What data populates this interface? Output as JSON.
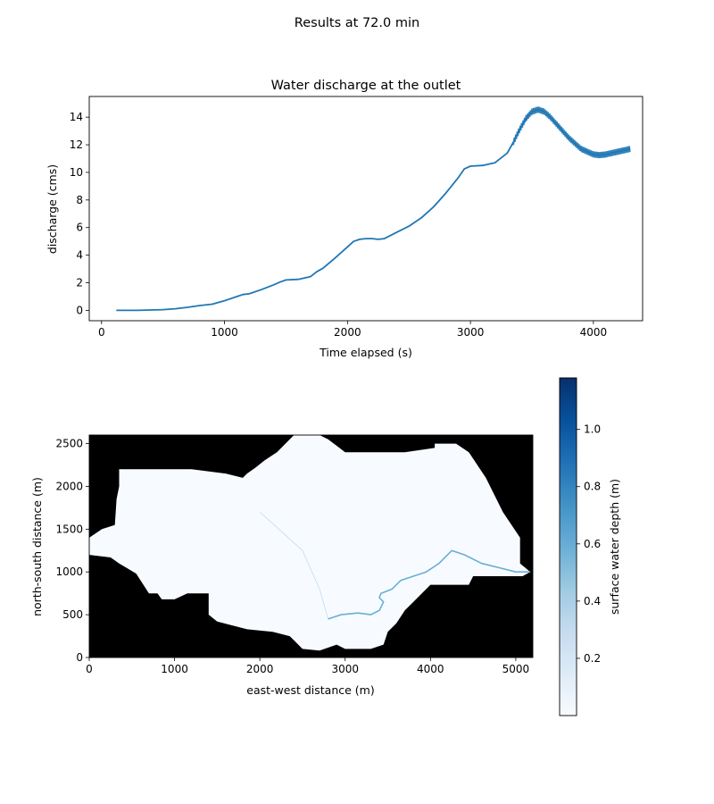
{
  "figure": {
    "suptitle": "Results at 72.0 min"
  },
  "colors": {
    "line": "#1f77b4",
    "mask": "#000000",
    "water_low": "#f7fbff",
    "water_high": "#08306b"
  },
  "chart_data": [
    {
      "type": "line",
      "title": "Water discharge at the outlet",
      "xlabel": "Time elapsed (s)",
      "ylabel": "discharge (cms)",
      "xlim": [
        -100,
        4400
      ],
      "ylim": [
        -0.75,
        15.5
      ],
      "xticks": [
        0,
        1000,
        2000,
        3000,
        4000
      ],
      "yticks": [
        0,
        2,
        4,
        6,
        8,
        10,
        12,
        14
      ],
      "grid": false,
      "series": [
        {
          "x": [
            120,
            300,
            500,
            600,
            700,
            800,
            900,
            1000,
            1100,
            1150,
            1200,
            1300,
            1400,
            1450,
            1500,
            1600,
            1700,
            1750,
            1800,
            1900,
            2000,
            2050,
            2100,
            2150,
            2200,
            2250,
            2300,
            2400,
            2500,
            2600,
            2700,
            2800,
            2900,
            2950,
            3000,
            3100,
            3200,
            3300,
            3350,
            3400,
            3450,
            3500,
            3550,
            3600,
            3650,
            3700,
            3800,
            3900,
            4000,
            4050,
            4100,
            4200,
            4300
          ],
          "y": [
            0.0,
            0.0,
            0.05,
            0.12,
            0.22,
            0.35,
            0.45,
            0.7,
            1.0,
            1.15,
            1.2,
            1.5,
            1.85,
            2.05,
            2.2,
            2.25,
            2.45,
            2.8,
            3.05,
            3.8,
            4.6,
            5.0,
            5.15,
            5.2,
            5.2,
            5.15,
            5.2,
            5.65,
            6.1,
            6.7,
            7.5,
            8.5,
            9.6,
            10.25,
            10.45,
            10.5,
            10.7,
            11.4,
            12.2,
            13.1,
            13.9,
            14.4,
            14.55,
            14.4,
            14.0,
            13.5,
            12.5,
            11.7,
            11.3,
            11.25,
            11.3,
            11.5,
            11.7
          ]
        }
      ]
    },
    {
      "type": "heatmap",
      "xlabel": "east-west distance (m)",
      "ylabel": "north-south distance (m)",
      "xlim": [
        0,
        5200
      ],
      "ylim": [
        0,
        2600
      ],
      "xticks": [
        0,
        1000,
        2000,
        3000,
        4000,
        5000
      ],
      "yticks": [
        0,
        500,
        1000,
        1500,
        2000,
        2500
      ],
      "colorbar": {
        "label": "surface water depth (m)",
        "range": [
          0,
          1.18
        ],
        "ticks": [
          0.2,
          0.4,
          0.6,
          0.8,
          1.0
        ],
        "colormap": "Blues"
      },
      "domain_outline": [
        [
          350,
          2200
        ],
        [
          1200,
          2200
        ],
        [
          1600,
          2150
        ],
        [
          1800,
          2100
        ],
        [
          1850,
          2150
        ],
        [
          1950,
          2220
        ],
        [
          2050,
          2300
        ],
        [
          2200,
          2400
        ],
        [
          2400,
          2600
        ],
        [
          2700,
          2600
        ],
        [
          2800,
          2550
        ],
        [
          3000,
          2400
        ],
        [
          3700,
          2400
        ],
        [
          4050,
          2450
        ],
        [
          4050,
          2500
        ],
        [
          4300,
          2500
        ],
        [
          4450,
          2400
        ],
        [
          4650,
          2100
        ],
        [
          4850,
          1700
        ],
        [
          5050,
          1400
        ],
        [
          5050,
          1100
        ],
        [
          5170,
          1000
        ],
        [
          5080,
          950
        ],
        [
          4500,
          950
        ],
        [
          4450,
          850
        ],
        [
          4000,
          850
        ],
        [
          3800,
          650
        ],
        [
          3700,
          550
        ],
        [
          3600,
          400
        ],
        [
          3500,
          300
        ],
        [
          3450,
          150
        ],
        [
          3300,
          100
        ],
        [
          3000,
          100
        ],
        [
          2900,
          150
        ],
        [
          2700,
          80
        ],
        [
          2500,
          100
        ],
        [
          2400,
          200
        ],
        [
          2350,
          250
        ],
        [
          2150,
          300
        ],
        [
          1850,
          330
        ],
        [
          1500,
          420
        ],
        [
          1400,
          500
        ],
        [
          1400,
          750
        ],
        [
          1150,
          750
        ],
        [
          1000,
          680
        ],
        [
          850,
          680
        ],
        [
          800,
          750
        ],
        [
          700,
          750
        ],
        [
          550,
          980
        ],
        [
          350,
          1100
        ],
        [
          250,
          1170
        ],
        [
          0,
          1200
        ],
        [
          0,
          1400
        ],
        [
          150,
          1500
        ],
        [
          300,
          1550
        ],
        [
          320,
          1850
        ],
        [
          350,
          2000
        ]
      ],
      "channel_path": [
        [
          2800,
          450
        ],
        [
          2950,
          500
        ],
        [
          3150,
          520
        ],
        [
          3300,
          500
        ],
        [
          3400,
          550
        ],
        [
          3450,
          650
        ],
        [
          3400,
          700
        ],
        [
          3420,
          750
        ],
        [
          3550,
          800
        ],
        [
          3650,
          900
        ],
        [
          3800,
          950
        ],
        [
          3950,
          1000
        ],
        [
          4100,
          1100
        ],
        [
          4250,
          1250
        ],
        [
          4400,
          1200
        ],
        [
          4600,
          1100
        ],
        [
          4800,
          1050
        ],
        [
          5000,
          1000
        ],
        [
          5170,
          1000
        ]
      ],
      "tributary_path": [
        [
          2000,
          1700
        ],
        [
          2500,
          1250
        ],
        [
          2700,
          800
        ],
        [
          2800,
          450
        ]
      ],
      "channel_depth_m": 0.6
    }
  ]
}
